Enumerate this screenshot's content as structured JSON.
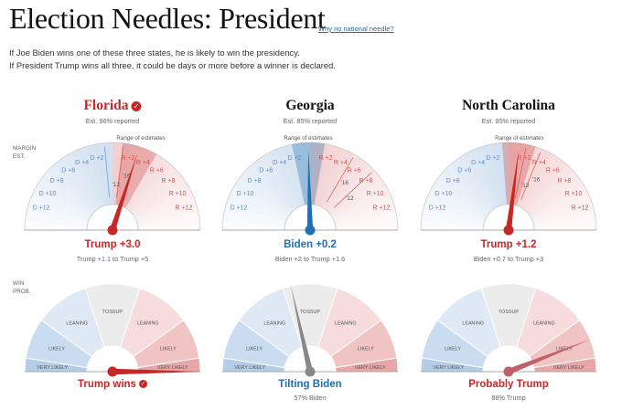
{
  "page": {
    "title": "Election Needles: President",
    "link": "Why no national needle?",
    "intro": [
      "If Joe Biden wins one of these three states, he is likely to win the presidency.",
      "If President Trump wins all three, it could be days or more before a winner is declared."
    ],
    "margin_label": [
      "MARGIN",
      "EST."
    ],
    "win_label": [
      "WIN",
      "PROB."
    ],
    "margin_ticks": [
      {
        "label": "D +2",
        "margin": -2
      },
      {
        "label": "D +4",
        "margin": -4
      },
      {
        "label": "D +6",
        "margin": -6
      },
      {
        "label": "D +8",
        "margin": -8
      },
      {
        "label": "D +10",
        "margin": -10
      },
      {
        "label": "D +12",
        "margin": -12
      },
      {
        "label": "R +2",
        "margin": 2
      },
      {
        "label": "R +4",
        "margin": 4
      },
      {
        "label": "R +6",
        "margin": 6
      },
      {
        "label": "R +8",
        "margin": 8
      },
      {
        "label": "R +10",
        "margin": 10
      },
      {
        "label": "R +12",
        "margin": 12
      }
    ],
    "range_of_estimates_label": "Range of estimates",
    "past_label": "'16",
    "past_label_alt": "'12",
    "win_bands": [
      "VERY LIKELY",
      "LIKELY",
      "LEANING",
      "TOSSUP",
      "LEANING",
      "LIKELY",
      "VERY LIKELY"
    ]
  },
  "states": [
    {
      "name": "Florida",
      "called": true,
      "reported": "Est. 96% reported",
      "result": "Trump +3.0",
      "range_text": "Trump +1.1 to Trump +5",
      "margin": 3.0,
      "range": [
        1.1,
        5
      ],
      "past_2016": 1.2,
      "past_2012": -0.9,
      "winner_party": "R",
      "win_text": "Trump wins",
      "win_sub": "",
      "win_prob_trump": 1.0
    },
    {
      "name": "Georgia",
      "called": false,
      "reported": "Est. 85% reported",
      "result": "Biden +0.2",
      "range_text": "Biden +2 to Trump +1.6",
      "margin": -0.2,
      "range": [
        -2,
        1.6
      ],
      "past_2016": 5.1,
      "past_2012": 7.8,
      "winner_party": "D",
      "win_text": "Tilting Biden",
      "win_sub": "57% Biden",
      "win_prob_trump": 0.43
    },
    {
      "name": "North Carolina",
      "called": false,
      "reported": "Est. 95% reported",
      "result": "Trump +1.2",
      "range_text": "Biden +0.7 to Trump +3",
      "margin": 1.2,
      "range": [
        -0.7,
        3
      ],
      "past_2016": 3.7,
      "past_2012": 2.0,
      "winner_party": "R",
      "win_text": "Probably Trump",
      "win_sub": "88% Trump",
      "win_prob_trump": 0.88
    }
  ],
  "colors": {
    "red": "#c62828",
    "blue": "#1f6fb2",
    "gray": "#888888",
    "dem_text": "#5b8fc9",
    "rep_text": "#d9534f"
  }
}
